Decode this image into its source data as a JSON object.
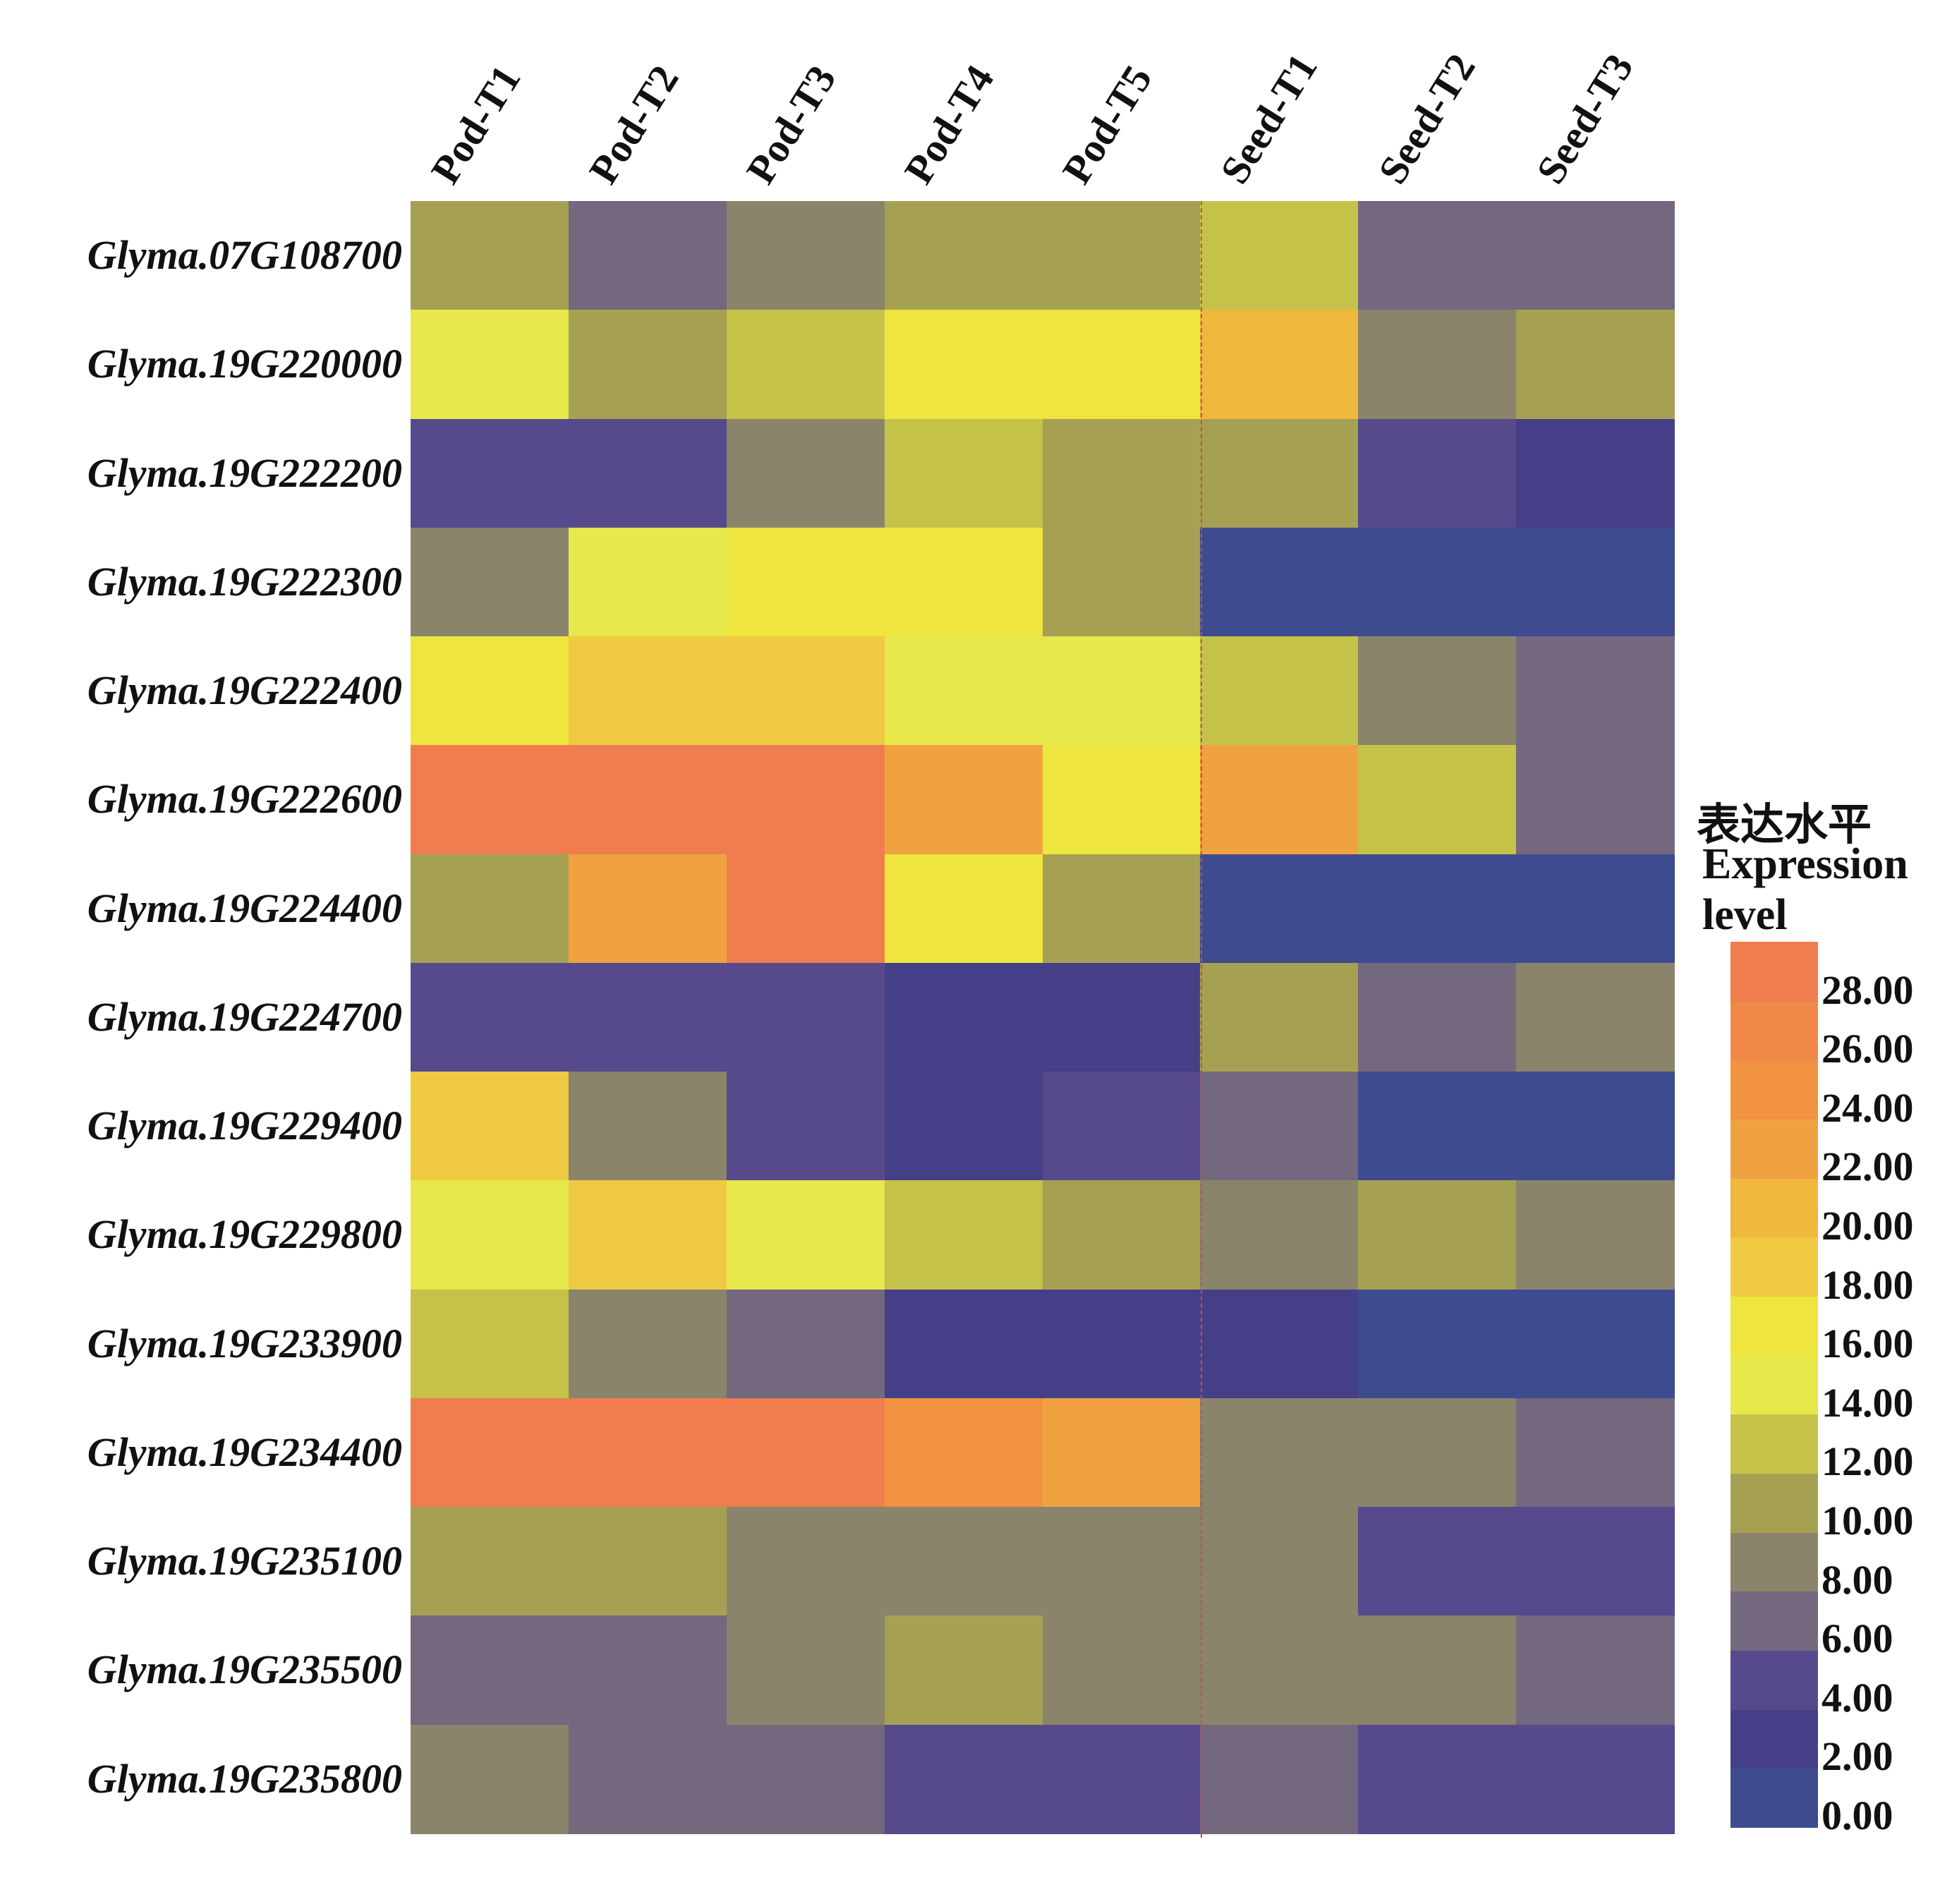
{
  "chart_data": {
    "type": "heatmap",
    "title": "",
    "columns": [
      "Pod-T1",
      "Pod-T2",
      "Pod-T3",
      "Pod-T4",
      "Pod-T5",
      "Seed-T1",
      "Seed-T2",
      "Seed-T3"
    ],
    "rows": [
      "Glyma.07G108700",
      "Glyma.19G220000",
      "Glyma.19G222200",
      "Glyma.19G222300",
      "Glyma.19G222400",
      "Glyma.19G222600",
      "Glyma.19G224400",
      "Glyma.19G224700",
      "Glyma.19G229400",
      "Glyma.19G229800",
      "Glyma.19G233900",
      "Glyma.19G234400",
      "Glyma.19G235100",
      "Glyma.19G235500",
      "Glyma.19G235800"
    ],
    "values": [
      [
        11,
        7,
        9,
        11,
        11,
        13,
        7,
        7
      ],
      [
        15,
        11,
        13,
        17,
        17,
        21,
        9,
        11
      ],
      [
        5,
        5,
        9,
        13,
        11,
        11,
        5,
        3
      ],
      [
        9,
        15,
        17,
        17,
        11,
        1,
        1,
        1
      ],
      [
        17,
        19,
        19,
        15,
        15,
        13,
        9,
        7
      ],
      [
        29,
        29,
        29,
        23,
        17,
        23,
        13,
        7
      ],
      [
        11,
        23,
        29,
        17,
        11,
        1,
        1,
        1
      ],
      [
        5,
        5,
        5,
        3,
        3,
        11,
        7,
        9
      ],
      [
        19,
        9,
        5,
        3,
        5,
        7,
        1,
        1
      ],
      [
        15,
        19,
        15,
        13,
        11,
        9,
        11,
        9
      ],
      [
        13,
        9,
        7,
        3,
        3,
        3,
        1,
        1
      ],
      [
        29,
        29,
        29,
        25,
        23,
        9,
        9,
        7
      ],
      [
        11,
        11,
        9,
        9,
        9,
        9,
        5,
        5
      ],
      [
        7,
        7,
        9,
        11,
        9,
        9,
        9,
        7
      ],
      [
        9,
        7,
        7,
        5,
        5,
        7,
        5,
        5
      ]
    ],
    "legend": {
      "title_cn": "表达水平",
      "title_en_1": "Expression",
      "title_en_2": "level",
      "ticks": [
        "0.00",
        "2.00",
        "4.00",
        "6.00",
        "8.00",
        "10.00",
        "12.00",
        "14.00",
        "16.00",
        "18.00",
        "20.00",
        "22.00",
        "24.00",
        "26.00",
        "28.00"
      ],
      "range": [
        0,
        30
      ],
      "band_colors": [
        "#3f4b8f",
        "#453f87",
        "#56498c",
        "#73687e",
        "#8a846b",
        "#a6a152",
        "#c5c24a",
        "#e6e84c",
        "#eee63f",
        "#f0c942",
        "#f0b73d",
        "#f0a241",
        "#f19340",
        "#f08947",
        "#ef7d4d"
      ]
    },
    "divider_after_column": "Pod-T5",
    "divider_color": "#c0504d"
  }
}
